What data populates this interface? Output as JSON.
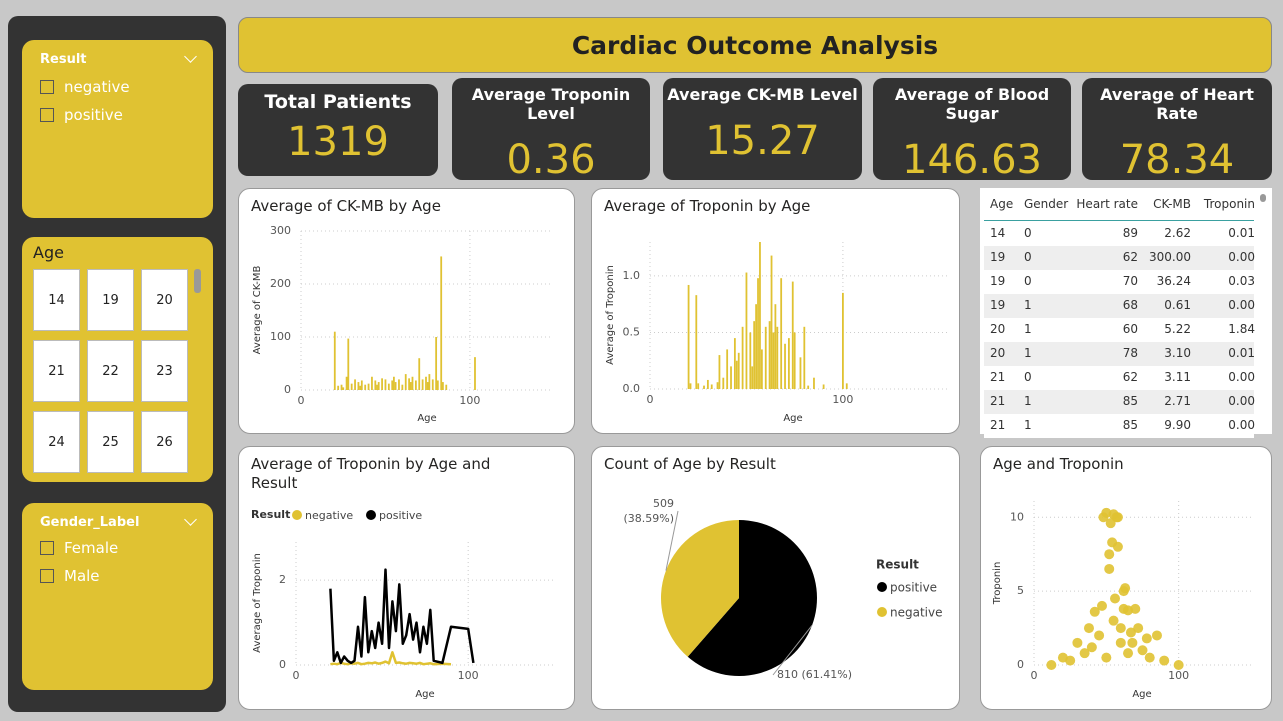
{
  "title": "Cardiac Outcome Analysis",
  "slicers": {
    "result": {
      "title": "Result",
      "options": [
        "negative",
        "positive"
      ]
    },
    "age": {
      "title": "Age",
      "options": [
        14,
        19,
        20,
        21,
        22,
        23,
        24,
        25,
        26
      ]
    },
    "gender": {
      "title": "Gender_Label",
      "options": [
        "Female",
        "Male"
      ]
    }
  },
  "kpis": [
    {
      "label": "Total Patients",
      "value": 1319
    },
    {
      "label": "Average Troponin Level",
      "value": 0.36
    },
    {
      "label": "Average CK-MB Level",
      "value": 15.27
    },
    {
      "label": "Average of Blood Sugar",
      "value": 146.63
    },
    {
      "label": "Average of Heart Rate",
      "value": 78.34
    }
  ],
  "table": {
    "columns": [
      "Age",
      "Gender",
      "Heart rate",
      "CK-MB",
      "Troponin"
    ],
    "rows": [
      [
        "14",
        "0",
        "89",
        "2.62",
        "0.01"
      ],
      [
        "19",
        "0",
        "62",
        "300.00",
        "0.00"
      ],
      [
        "19",
        "0",
        "70",
        "36.24",
        "0.03"
      ],
      [
        "19",
        "1",
        "68",
        "0.61",
        "0.00"
      ],
      [
        "20",
        "1",
        "60",
        "5.22",
        "1.84"
      ],
      [
        "20",
        "1",
        "78",
        "3.10",
        "0.01"
      ],
      [
        "21",
        "0",
        "62",
        "3.11",
        "0.00"
      ],
      [
        "21",
        "1",
        "85",
        "2.71",
        "0.00"
      ],
      [
        "21",
        "1",
        "85",
        "9.90",
        "0.00"
      ]
    ]
  },
  "chart_data": [
    {
      "type": "bar",
      "title": "Average of CK-MB by Age",
      "x_label": "Age",
      "y_label": "Average of CK-MB",
      "color": "#e0c232",
      "grid": true,
      "x": [
        20,
        22,
        24,
        25,
        27,
        28,
        30,
        32,
        34,
        35,
        36,
        38,
        40,
        42,
        44,
        45,
        46,
        48,
        50,
        52,
        54,
        55,
        56,
        58,
        60,
        62,
        64,
        65,
        66,
        68,
        70,
        72,
        74,
        75,
        76,
        78,
        80,
        81,
        83,
        84,
        86,
        103
      ],
      "values": [
        110,
        8,
        10,
        5,
        25,
        97,
        12,
        20,
        15,
        8,
        18,
        10,
        12,
        25,
        18,
        10,
        15,
        22,
        20,
        12,
        18,
        25,
        15,
        20,
        10,
        30,
        22,
        15,
        25,
        18,
        60,
        20,
        25,
        15,
        30,
        20,
        100,
        18,
        252,
        15,
        10,
        62
      ],
      "xlim": [
        0,
        148
      ],
      "xticks": [
        0,
        100
      ],
      "ylim": [
        0,
        300
      ],
      "yticks": [
        0,
        100,
        200,
        300
      ]
    },
    {
      "type": "bar",
      "title": "Average of Troponin by Age",
      "x_label": "Age",
      "y_label": "Average of Troponin",
      "color": "#e0c232",
      "grid": true,
      "x": [
        20,
        21,
        24,
        25,
        28,
        30,
        32,
        35,
        36,
        38,
        40,
        42,
        44,
        45,
        46,
        48,
        50,
        52,
        53,
        54,
        55,
        56,
        57,
        58,
        60,
        62,
        63,
        64,
        65,
        66,
        68,
        70,
        72,
        74,
        75,
        78,
        80,
        82,
        85,
        90,
        100,
        102
      ],
      "values": [
        0.92,
        0.05,
        0.83,
        0.05,
        0.03,
        0.08,
        0.04,
        0.06,
        0.3,
        0.1,
        0.35,
        0.2,
        0.45,
        0.25,
        0.32,
        0.55,
        1.03,
        0.5,
        0.2,
        0.6,
        0.75,
        0.98,
        1.3,
        0.35,
        0.55,
        0.6,
        1.18,
        0.5,
        0.75,
        0.55,
        0.98,
        0.4,
        0.45,
        0.95,
        0.5,
        0.28,
        0.55,
        0.03,
        0.1,
        0.04,
        0.85,
        0.05
      ],
      "xlim": [
        0,
        155
      ],
      "xticks": [
        0,
        100
      ],
      "ylim": [
        0,
        1.3
      ],
      "yticks": [
        {
          "value": 0,
          "label": "0.0"
        },
        {
          "value": 0.5,
          "label": "0.5"
        },
        {
          "value": 1,
          "label": "1.0"
        }
      ]
    },
    {
      "type": "line",
      "title": "Average of Troponin by Age and Result",
      "x_label": "Age",
      "y_label": "Average of Troponin",
      "legend_title": "Result",
      "grid": true,
      "x": [
        20,
        22,
        24,
        26,
        28,
        30,
        32,
        34,
        36,
        38,
        40,
        42,
        44,
        46,
        48,
        50,
        52,
        54,
        56,
        58,
        60,
        62,
        64,
        66,
        68,
        70,
        72,
        74,
        76,
        78,
        80,
        85,
        90,
        100,
        103
      ],
      "series": [
        {
          "name": "negative",
          "color": "#e0c232",
          "values": [
            0.02,
            0.03,
            0.02,
            0.05,
            0.03,
            0.02,
            0.04,
            0.03,
            0.05,
            0.02,
            0.03,
            0.05,
            0.04,
            0.06,
            0.03,
            0.05,
            0.08,
            0.04,
            0.3,
            0.05,
            0.06,
            0.04,
            0.03,
            0.05,
            0.04,
            0.03,
            0.05,
            0.02,
            0.03,
            0.04,
            0.02,
            0.03,
            0.02,
            null,
            null
          ]
        },
        {
          "name": "positive",
          "color": "#000000",
          "values": [
            1.8,
            0.1,
            0.3,
            0.05,
            0.2,
            0.1,
            0.05,
            0.1,
            0.9,
            0.2,
            1.6,
            0.3,
            0.8,
            0.4,
            1.0,
            0.5,
            2.25,
            0.4,
            1.5,
            0.8,
            1.9,
            0.5,
            0.7,
            1.2,
            0.6,
            1.0,
            0.3,
            0.9,
            0.5,
            1.3,
            0.1,
            0.05,
            0.9,
            0.85,
            0.05
          ]
        }
      ],
      "xlim": [
        0,
        151
      ],
      "xticks": [
        0,
        100
      ],
      "ylim": [
        0,
        2.9
      ],
      "yticks": [
        0,
        2
      ]
    },
    {
      "type": "pie",
      "title": "Count of Age by Result",
      "legend_title": "Result",
      "categories": [
        "positive",
        "negative"
      ],
      "values": [
        810,
        509
      ],
      "value_labels": [
        "810 (61.41%)",
        "509 (38.59%)"
      ],
      "colors": [
        "#000000",
        "#e0c232"
      ]
    },
    {
      "type": "scatter",
      "title": "Age and Troponin",
      "x_label": "Age",
      "y_label": "Troponin",
      "color": "#e0c232",
      "grid": true,
      "x": [
        12,
        20,
        25,
        30,
        35,
        38,
        40,
        42,
        45,
        47,
        48,
        50,
        50,
        52,
        53,
        55,
        55,
        56,
        57,
        58,
        60,
        60,
        62,
        63,
        65,
        65,
        67,
        68,
        70,
        72,
        75,
        78,
        80,
        85,
        90,
        100,
        52,
        54,
        58,
        62
      ],
      "y": [
        0,
        0.5,
        0.3,
        1.5,
        0.8,
        2.5,
        1.2,
        3.6,
        2.0,
        4.0,
        10,
        0.5,
        10.3,
        6.5,
        9.6,
        3.0,
        10.2,
        4.5,
        10,
        10,
        1.5,
        2.5,
        3.8,
        5.2,
        0.8,
        3.7,
        2.2,
        1.5,
        3.8,
        2.5,
        1.0,
        1.8,
        0.5,
        2.0,
        0.3,
        0,
        7.5,
        8.3,
        8.0,
        5.0
      ],
      "xlim": [
        0,
        150
      ],
      "xticks": [
        0,
        100
      ],
      "ylim": [
        0,
        11.1
      ],
      "yticks": [
        0,
        5,
        10
      ]
    }
  ]
}
